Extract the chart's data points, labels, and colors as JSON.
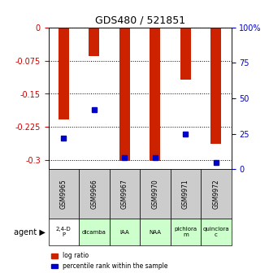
{
  "title": "GDS480 / 521851",
  "samples": [
    "GSM9965",
    "GSM9966",
    "GSM9967",
    "GSM9970",
    "GSM9971",
    "GSM9972"
  ],
  "agents": [
    "2,4-D\nP",
    "dicamba",
    "IAA",
    "NAA",
    "pichlora\nm",
    "quinclora\nc"
  ],
  "agent_colors": [
    "#ffffff",
    "#ccffcc",
    "#ccffcc",
    "#ccffcc",
    "#ccffcc",
    "#ccffcc"
  ],
  "log_ratios": [
    -0.207,
    -0.065,
    -0.302,
    -0.302,
    -0.118,
    -0.262
  ],
  "percentile_ranks": [
    22,
    42,
    8,
    8,
    25,
    5
  ],
  "ylim_left": [
    -0.32,
    0.0
  ],
  "ylim_right": [
    0,
    100
  ],
  "yticks_left": [
    0,
    -0.075,
    -0.15,
    -0.225,
    -0.3
  ],
  "yticks_right": [
    0,
    25,
    50,
    75,
    100
  ],
  "bar_color": "#cc2200",
  "dot_color": "#0000cc",
  "left_tick_color": "#cc0000",
  "right_tick_color": "#0000cc",
  "sample_box_color": "#cccccc",
  "legend_bar_label": "log ratio",
  "legend_dot_label": "percentile rank within the sample",
  "agent_label": "agent"
}
